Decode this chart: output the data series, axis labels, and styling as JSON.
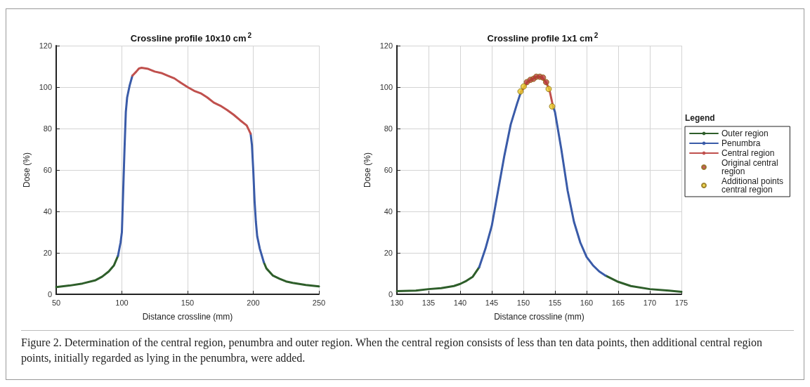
{
  "chart_data": [
    {
      "type": "line",
      "title": "Crossline profile 10x10 cm$^{2}$",
      "xlabel": "Distance crossline (mm)",
      "ylabel": "Dose (%)",
      "xlim": [
        50,
        250
      ],
      "xticks": [
        50,
        100,
        150,
        200,
        250
      ],
      "ylim": [
        0,
        120
      ],
      "yticks": [
        0,
        20,
        40,
        60,
        80,
        100,
        120
      ],
      "grid": true,
      "legend": false,
      "marker": "none",
      "line_style": "solid",
      "series": [
        {
          "color": "#2e5e2a",
          "x": [
            50,
            60,
            70,
            80,
            85,
            90,
            94,
            97,
            150,
            208,
            210,
            215,
            220,
            225,
            230,
            240,
            250
          ],
          "values": [
            3.5,
            4.2,
            5.2,
            6.8,
            8.5,
            11,
            14,
            18.5,
            null,
            15.5,
            12.5,
            9,
            7.5,
            6.2,
            5.5,
            4.5,
            3.8
          ]
        },
        {
          "color": "#3a5ba8",
          "x": [
            97,
            99,
            100,
            101,
            102,
            103,
            104,
            106,
            108,
            150,
            198,
            199,
            200,
            201,
            202,
            203,
            205,
            208
          ],
          "values": [
            18.5,
            25,
            30,
            50,
            70,
            88,
            95,
            101,
            105.5,
            null,
            77.5,
            72,
            60,
            45,
            35,
            28,
            22,
            15.5
          ]
        },
        {
          "color": "#c0504d",
          "x": [
            108,
            111,
            113,
            115,
            120,
            125,
            130,
            135,
            140,
            145,
            150,
            155,
            160,
            165,
            170,
            175,
            180,
            185,
            190,
            195,
            198
          ],
          "values": [
            105.5,
            107.5,
            109,
            109.3,
            108.8,
            107.5,
            106.8,
            105.5,
            104.2,
            102,
            100,
            98.2,
            97,
            95,
            92.5,
            91,
            89,
            86.7,
            84,
            81.5,
            77.5
          ]
        }
      ],
      "annotations": [
        "Figure 2. Determination of the central region, penumbra and outer region. When the central region consists of less than ten data points, then additional central region points, initially regarded as lying in the penumbra, were added."
      ]
    },
    {
      "type": "line",
      "title": "Crossline profile 1x1 cm$^{2}$",
      "xlabel": "Distance crossline (mm)",
      "ylabel": "Dose (%)",
      "legend_title": "Legend",
      "xlim": [
        130,
        175
      ],
      "xticks": [
        130,
        135,
        140,
        145,
        150,
        155,
        160,
        165,
        170,
        175
      ],
      "ylim": [
        0,
        120
      ],
      "yticks": [
        0,
        20,
        40,
        60,
        80,
        100,
        120
      ],
      "grid": true,
      "legend": "right",
      "marker": "none",
      "line_style": "solid",
      "series": [
        {
          "name": "Outer region",
          "color": "#2e5e2a",
          "x": [
            130,
            133,
            135,
            137,
            139,
            140,
            141,
            142,
            143,
            150,
            163,
            165,
            167,
            170,
            173,
            175
          ],
          "values": [
            1.5,
            1.8,
            2.5,
            3,
            4,
            5,
            6.5,
            8.5,
            13,
            null,
            9,
            6,
            4,
            2.5,
            1.8,
            1.2
          ]
        },
        {
          "name": "Penumbra",
          "color": "#3a5ba8",
          "x": [
            143,
            144,
            145,
            146,
            147,
            148,
            149,
            149.6,
            152,
            154.7,
            155,
            156,
            157,
            158,
            159,
            160,
            161,
            162,
            163
          ],
          "values": [
            13,
            22,
            33,
            50,
            67,
            82,
            92,
            97.5,
            null,
            90.5,
            88,
            70,
            50,
            35,
            25,
            18,
            14,
            11,
            9
          ]
        },
        {
          "name": "Central region",
          "color": "#c0504d",
          "x": [
            149.6,
            150.2,
            150.6,
            151,
            151.5,
            152,
            152.5,
            153,
            153.6,
            154.1,
            154.7
          ],
          "values": [
            97.5,
            100.3,
            102.3,
            103.2,
            104,
            104.9,
            105,
            104.5,
            102.2,
            99,
            90.5
          ]
        },
        {
          "name": "Original central region",
          "type": "scatter",
          "marker": "circle",
          "color": "#b83a3a",
          "x": [
            150.55,
            151.1,
            151.6,
            152.05,
            152.6,
            153.1,
            153.6
          ],
          "values": [
            102.4,
            103.5,
            104,
            105,
            105,
            104.6,
            102.4
          ]
        },
        {
          "name": "Additional points central region",
          "type": "scatter",
          "marker": "circle",
          "color": "#e8cc2a",
          "x": [
            149.55,
            150.05,
            154.0,
            154.55
          ],
          "values": [
            97.9,
            100.3,
            99.1,
            90.7
          ]
        }
      ]
    }
  ]
}
